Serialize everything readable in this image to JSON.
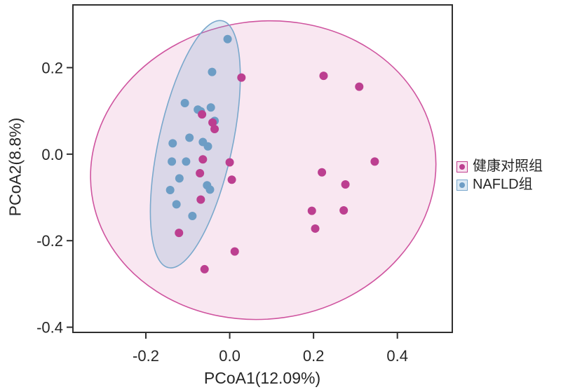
{
  "figure": {
    "xlabel": "PCoA1(12.09%)",
    "ylabel": "PCoA2(8.8%)"
  },
  "legend": {
    "position": "right-outside",
    "items": [
      {
        "key": "healthy-control",
        "label": "健康对照组",
        "dot_color": "#bc3f90",
        "swatch_border": "#c2408f",
        "swatch_bg": "#f8e3f0"
      },
      {
        "key": "nafld",
        "label": "NAFLD组",
        "dot_color": "#6d9dc5",
        "swatch_border": "#7aa8cc",
        "swatch_bg": "#dbe9f4"
      }
    ]
  },
  "chart_data": {
    "type": "scatter",
    "title": "",
    "xlabel": "PCoA1(12.09%)",
    "ylabel": "PCoA2(8.8%)",
    "xlim": [
      -0.374,
      0.531
    ],
    "ylim": [
      -0.412,
      0.345
    ],
    "grid": false,
    "legend_position": "right",
    "x_ticks": {
      "values": [
        -0.2,
        0.0,
        0.2,
        0.4
      ],
      "labels": [
        "-0.2",
        "0.0",
        "0.2",
        "0.4"
      ]
    },
    "y_ticks": {
      "values": [
        0.2,
        0.0,
        -0.2,
        -0.4
      ],
      "labels": [
        "0.2",
        "0.0",
        "-0.2",
        "-0.4"
      ]
    },
    "series": [
      {
        "key": "healthy-control",
        "name": "健康对照组",
        "color": "#bc3f90",
        "marker_radius": 6,
        "points": [
          [
            0.028,
            0.177
          ],
          [
            0.224,
            0.181
          ],
          [
            0.309,
            0.156
          ],
          [
            -0.066,
            0.092
          ],
          [
            -0.041,
            0.073
          ],
          [
            -0.036,
            0.058
          ],
          [
            -0.064,
            -0.012
          ],
          [
            0.0,
            -0.019
          ],
          [
            -0.071,
            -0.044
          ],
          [
            0.005,
            -0.059
          ],
          [
            -0.069,
            -0.105
          ],
          [
            0.346,
            -0.017
          ],
          [
            0.22,
            -0.042
          ],
          [
            0.276,
            -0.07
          ],
          [
            0.196,
            -0.131
          ],
          [
            0.272,
            -0.13
          ],
          [
            0.204,
            -0.172
          ],
          [
            -0.121,
            -0.182
          ],
          [
            0.012,
            -0.225
          ],
          [
            -0.06,
            -0.266
          ]
        ]
      },
      {
        "key": "nafld",
        "name": "NAFLD组",
        "color": "#6d9dc5",
        "marker_radius": 6,
        "points": [
          [
            -0.005,
            0.266
          ],
          [
            -0.042,
            0.19
          ],
          [
            -0.107,
            0.118
          ],
          [
            -0.076,
            0.103
          ],
          [
            -0.069,
            0.099
          ],
          [
            -0.045,
            0.108
          ],
          [
            -0.036,
            0.077
          ],
          [
            -0.096,
            0.038
          ],
          [
            -0.136,
            0.025
          ],
          [
            -0.064,
            0.028
          ],
          [
            -0.052,
            0.018
          ],
          [
            -0.138,
            -0.017
          ],
          [
            -0.104,
            -0.017
          ],
          [
            -0.12,
            -0.056
          ],
          [
            -0.054,
            -0.072
          ],
          [
            -0.047,
            -0.082
          ],
          [
            -0.142,
            -0.083
          ],
          [
            -0.127,
            -0.116
          ],
          [
            -0.089,
            -0.143
          ]
        ]
      }
    ],
    "ellipses": [
      {
        "series_key": "healthy-control",
        "cx": 0.08,
        "cy": -0.037,
        "rx": 0.413,
        "ry": 0.344,
        "angle_deg": -8,
        "fill": "rgba(209,87,158,0.14)",
        "stroke": "#cf549f"
      },
      {
        "series_key": "nafld",
        "cx": -0.082,
        "cy": 0.023,
        "rx": 0.088,
        "ry": 0.292,
        "angle_deg": 12.3,
        "fill": "rgba(109,158,200,0.22)",
        "stroke": "#7aa8cc"
      }
    ]
  }
}
